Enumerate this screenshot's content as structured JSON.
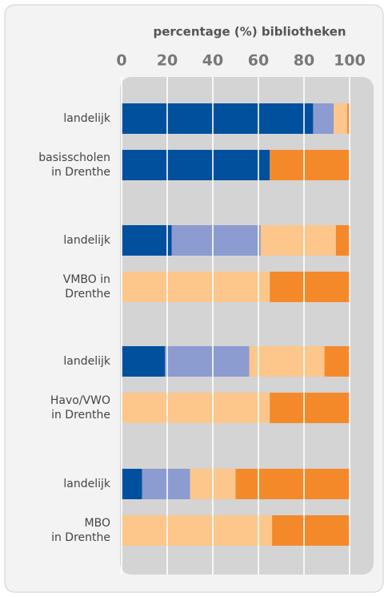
{
  "chart_data": {
    "type": "stacked-barh",
    "title": "percentage (%) bibliotheken",
    "categories": [
      "landelijk",
      "basisscholen\nin Drenthe",
      "landelijk",
      "VMBO in\nDrenthe",
      "landelijk",
      "Havo/VWO\nin Drenthe",
      "landelijk",
      "MBO\nin Drenthe"
    ],
    "series": [
      {
        "color": "#00509e",
        "values": [
          84,
          65,
          22,
          0,
          19,
          0,
          9,
          0
        ]
      },
      {
        "color": "#8c9bd0",
        "values": [
          9,
          0,
          39,
          0,
          37,
          0,
          21,
          0
        ]
      },
      {
        "color": "#fdc68b",
        "values": [
          6,
          0,
          33,
          65,
          33,
          65,
          20,
          66
        ]
      },
      {
        "color": "#f4892a",
        "values": [
          1,
          35,
          6,
          35,
          11,
          35,
          50,
          34
        ]
      }
    ],
    "xlim": [
      0,
      100
    ],
    "xticks": [
      0,
      20,
      40,
      60,
      80,
      100
    ],
    "grid": true
  }
}
